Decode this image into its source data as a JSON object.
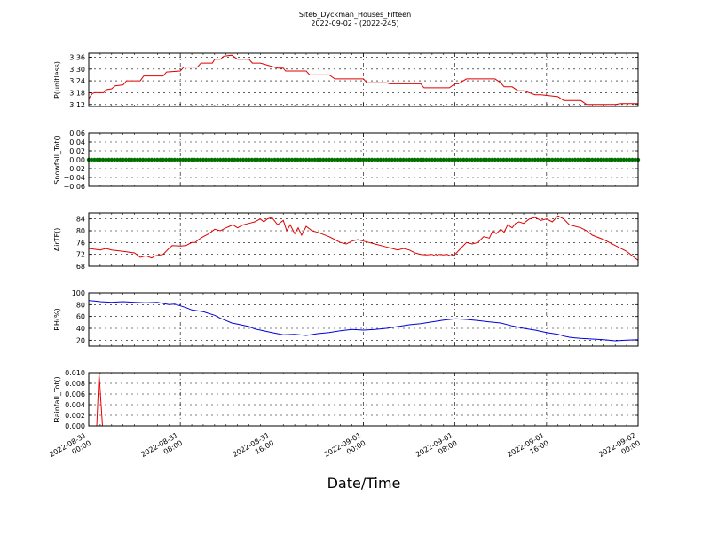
{
  "figure": {
    "title": "Site6_Dyckman_Houses_Fifteen",
    "subtitle": "2022-09-02 - (2022-245)",
    "xlabel": "Date/Time"
  },
  "x_ticks": [
    [
      "2022-08-31",
      "00:00"
    ],
    [
      "2022-08-31",
      "08:00"
    ],
    [
      "2022-08-31",
      "16:00"
    ],
    [
      "2022-09-01",
      "00:00"
    ],
    [
      "2022-09-01",
      "08:00"
    ],
    [
      "2022-09-01",
      "16:00"
    ],
    [
      "2022-09-02",
      "00:00"
    ]
  ],
  "chart_data": [
    {
      "type": "line",
      "ylabel": "P(unitless)",
      "ylim": [
        3.11,
        3.38
      ],
      "yticks": [
        "3.12",
        "3.18",
        "3.24",
        "3.30",
        "3.36"
      ],
      "color": "#e00000",
      "x_hours": [
        0,
        0.3,
        0.5,
        1.3,
        1.5,
        2,
        2.3,
        3,
        3.3,
        4.5,
        4.8,
        6.5,
        6.8,
        8,
        8.3,
        9.5,
        9.8,
        10.8,
        11,
        11.5,
        11.8,
        12.5,
        13,
        14,
        14.3,
        14.5,
        15,
        16.5,
        17,
        17.2,
        19,
        19.3,
        21,
        21.5,
        24,
        24.3,
        26,
        26.3,
        29,
        29.3,
        30,
        31.5,
        32,
        32.3,
        33,
        34.5,
        35,
        35.5,
        36,
        36.3,
        37,
        37.5,
        38,
        39,
        39.5,
        41,
        41.5,
        43,
        43.5,
        46,
        46.5,
        48
      ],
      "values": [
        3.15,
        3.175,
        3.18,
        3.18,
        3.195,
        3.2,
        3.215,
        3.22,
        3.24,
        3.24,
        3.265,
        3.265,
        3.285,
        3.29,
        3.31,
        3.31,
        3.33,
        3.33,
        3.35,
        3.35,
        3.365,
        3.37,
        3.35,
        3.35,
        3.33,
        3.33,
        3.33,
        3.305,
        3.305,
        3.29,
        3.29,
        3.27,
        3.27,
        3.25,
        3.25,
        3.23,
        3.23,
        3.225,
        3.225,
        3.205,
        3.205,
        3.205,
        3.225,
        3.225,
        3.25,
        3.25,
        3.25,
        3.25,
        3.23,
        3.21,
        3.21,
        3.19,
        3.19,
        3.17,
        3.17,
        3.16,
        3.14,
        3.14,
        3.12,
        3.12,
        3.125,
        3.125
      ]
    },
    {
      "type": "scatter",
      "ylabel": "Snowfall_Tot()",
      "ylim": [
        -0.06,
        0.06
      ],
      "yticks": [
        "0.06",
        "0.04",
        "0.02",
        "0.00",
        "−0.02",
        "−0.04",
        "−0.06"
      ],
      "color": "#007000",
      "x_range_hours": [
        0,
        48
      ],
      "constant_value": 0.0
    },
    {
      "type": "line",
      "ylabel": "AirTF()",
      "ylim": [
        68,
        86
      ],
      "yticks": [
        "68",
        "72",
        "76",
        "80",
        "84"
      ],
      "color": "#e00000",
      "x_hours": [
        0,
        1,
        1.5,
        2,
        3,
        4,
        4.5,
        5,
        5.5,
        5.8,
        6.5,
        7,
        7.3,
        8,
        8.5,
        9,
        9.3,
        9.6,
        10,
        10.5,
        11,
        11.5,
        12,
        12.3,
        12.6,
        13,
        13.5,
        14,
        14.5,
        15,
        15.3,
        15.6,
        16,
        16.5,
        17,
        17.3,
        17.6,
        18,
        18.3,
        18.6,
        19,
        19.5,
        20,
        21,
        21.5,
        22,
        22.5,
        23,
        23.5,
        24,
        24.5,
        25,
        26,
        26.5,
        27,
        27.5,
        28,
        28.5,
        29,
        29.5,
        30,
        30.3,
        30.6,
        31,
        31.3,
        31.6,
        32,
        32.5,
        33,
        33.5,
        34,
        34.5,
        35,
        35.3,
        35.6,
        36,
        36.3,
        36.6,
        37,
        37.3,
        37.6,
        38,
        38.5,
        39,
        39.5,
        40,
        40.5,
        41,
        41.5,
        42,
        43,
        43.5,
        44,
        45,
        46,
        47,
        48
      ],
      "values": [
        74,
        73.5,
        74,
        73.5,
        73,
        72.5,
        71,
        71.5,
        70.8,
        71.5,
        72,
        74,
        75,
        74.8,
        75,
        76,
        76,
        77,
        78,
        79,
        80.5,
        80,
        81,
        81.5,
        82,
        81,
        82,
        82.5,
        83,
        84,
        83,
        84,
        84.5,
        82,
        83.5,
        80,
        82,
        79,
        81,
        78.5,
        81.5,
        80,
        79.5,
        78,
        77,
        76,
        75.5,
        76.5,
        77,
        76.5,
        76,
        75.5,
        74.5,
        74,
        73.5,
        74,
        73.5,
        72.5,
        72,
        71.8,
        72,
        71.5,
        72,
        71.8,
        72,
        71.5,
        72,
        74,
        76,
        75.5,
        76,
        78,
        77.5,
        80,
        79,
        80.5,
        79.5,
        82,
        81,
        82.5,
        83,
        82.5,
        84,
        84.5,
        83.5,
        84,
        83,
        85,
        84,
        82,
        81,
        80,
        78.5,
        77,
        75,
        73,
        70
      ]
    },
    {
      "type": "line",
      "ylabel": "RH(%)",
      "ylim": [
        10,
        100
      ],
      "yticks": [
        "20",
        "40",
        "60",
        "80",
        "100"
      ],
      "color": "#0000dd",
      "x_hours": [
        0,
        0.5,
        1,
        2,
        3,
        4,
        5,
        6,
        6.5,
        7,
        7.5,
        8,
        8.5,
        9,
        10,
        11,
        11.5,
        12,
        12.5,
        13,
        14,
        14.5,
        15,
        16,
        17,
        18,
        19,
        20,
        21,
        22,
        23,
        24,
        25,
        26,
        27,
        28,
        29,
        30,
        31,
        32,
        33,
        34,
        35,
        36,
        37,
        38,
        39,
        40,
        41,
        41.5,
        42,
        42.5,
        43,
        44,
        45,
        46,
        47,
        48
      ],
      "values": [
        87,
        86,
        85,
        84,
        85,
        84,
        83,
        84,
        82,
        80,
        81,
        78,
        75,
        71,
        68,
        62,
        57,
        53,
        49,
        47,
        43,
        39,
        37,
        33,
        29,
        30,
        28,
        31,
        33,
        36,
        38,
        37,
        38,
        40,
        43,
        46,
        48,
        51,
        54,
        56,
        55,
        53,
        51,
        49,
        44,
        40,
        37,
        33,
        30,
        27,
        25,
        24,
        23,
        22,
        21,
        19,
        20,
        21
      ]
    },
    {
      "type": "line",
      "ylabel": "Rainfall_Tot()",
      "ylim": [
        0,
        0.01
      ],
      "yticks": [
        "0.000",
        "0.002",
        "0.004",
        "0.006",
        "0.008",
        "0.010"
      ],
      "color": "#e00000",
      "x_hours": [
        0,
        0.7,
        0.9,
        1.2,
        48
      ],
      "values": [
        0,
        0,
        0.01,
        0,
        0
      ]
    }
  ]
}
